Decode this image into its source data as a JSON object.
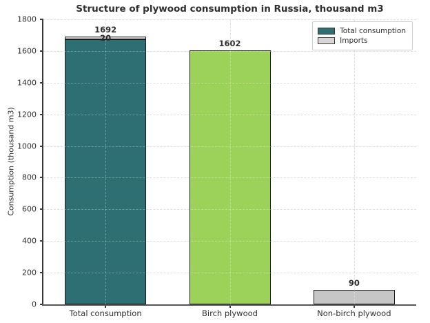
{
  "chart_data": {
    "type": "bar",
    "stacked": true,
    "title": "Structure of plywood consumption in Russia, thousand m3",
    "ylabel": "Consumption (thousand m3)",
    "xlabel": "",
    "categories": [
      "Total consumption",
      "Birch plywood",
      "Non-birch plywood"
    ],
    "bars": [
      {
        "category": "Total consumption",
        "total": 1692,
        "total_label": "1692",
        "segments": [
          {
            "series": "Total consumption",
            "value": 1672,
            "color": "#2d6f72"
          },
          {
            "series": "Imports",
            "value": 20,
            "color": "#d6d6d6",
            "label": "20"
          }
        ]
      },
      {
        "category": "Birch plywood",
        "total": 1602,
        "total_label": "1602",
        "segments": [
          {
            "series": "Birch plywood",
            "value": 1602,
            "color": "#9cd25a"
          }
        ]
      },
      {
        "category": "Non-birch plywood",
        "total": 90,
        "total_label": "90",
        "segments": [
          {
            "series": "Non-birch plywood",
            "value": 90,
            "color": "#c6c6c6"
          }
        ]
      }
    ],
    "ylim": [
      0,
      1800
    ],
    "yticks": [
      0,
      200,
      400,
      600,
      800,
      1000,
      1200,
      1400,
      1600,
      1800
    ],
    "grid": {
      "horizontal": true,
      "vertical": true,
      "style": "dashed"
    },
    "legend": {
      "position": "upper right",
      "items": [
        {
          "label": "Total consumption",
          "color": "#2d6f72"
        },
        {
          "label": "Imports",
          "color": "#d6d6d6"
        }
      ]
    }
  },
  "colors": {
    "background": "#ffffff",
    "bar_edge": "#1a1a1a",
    "grid": "#d2d2d2",
    "axis": "#3a3a3a",
    "text": "#2e2e2e",
    "legend_border": "#cccccc"
  }
}
